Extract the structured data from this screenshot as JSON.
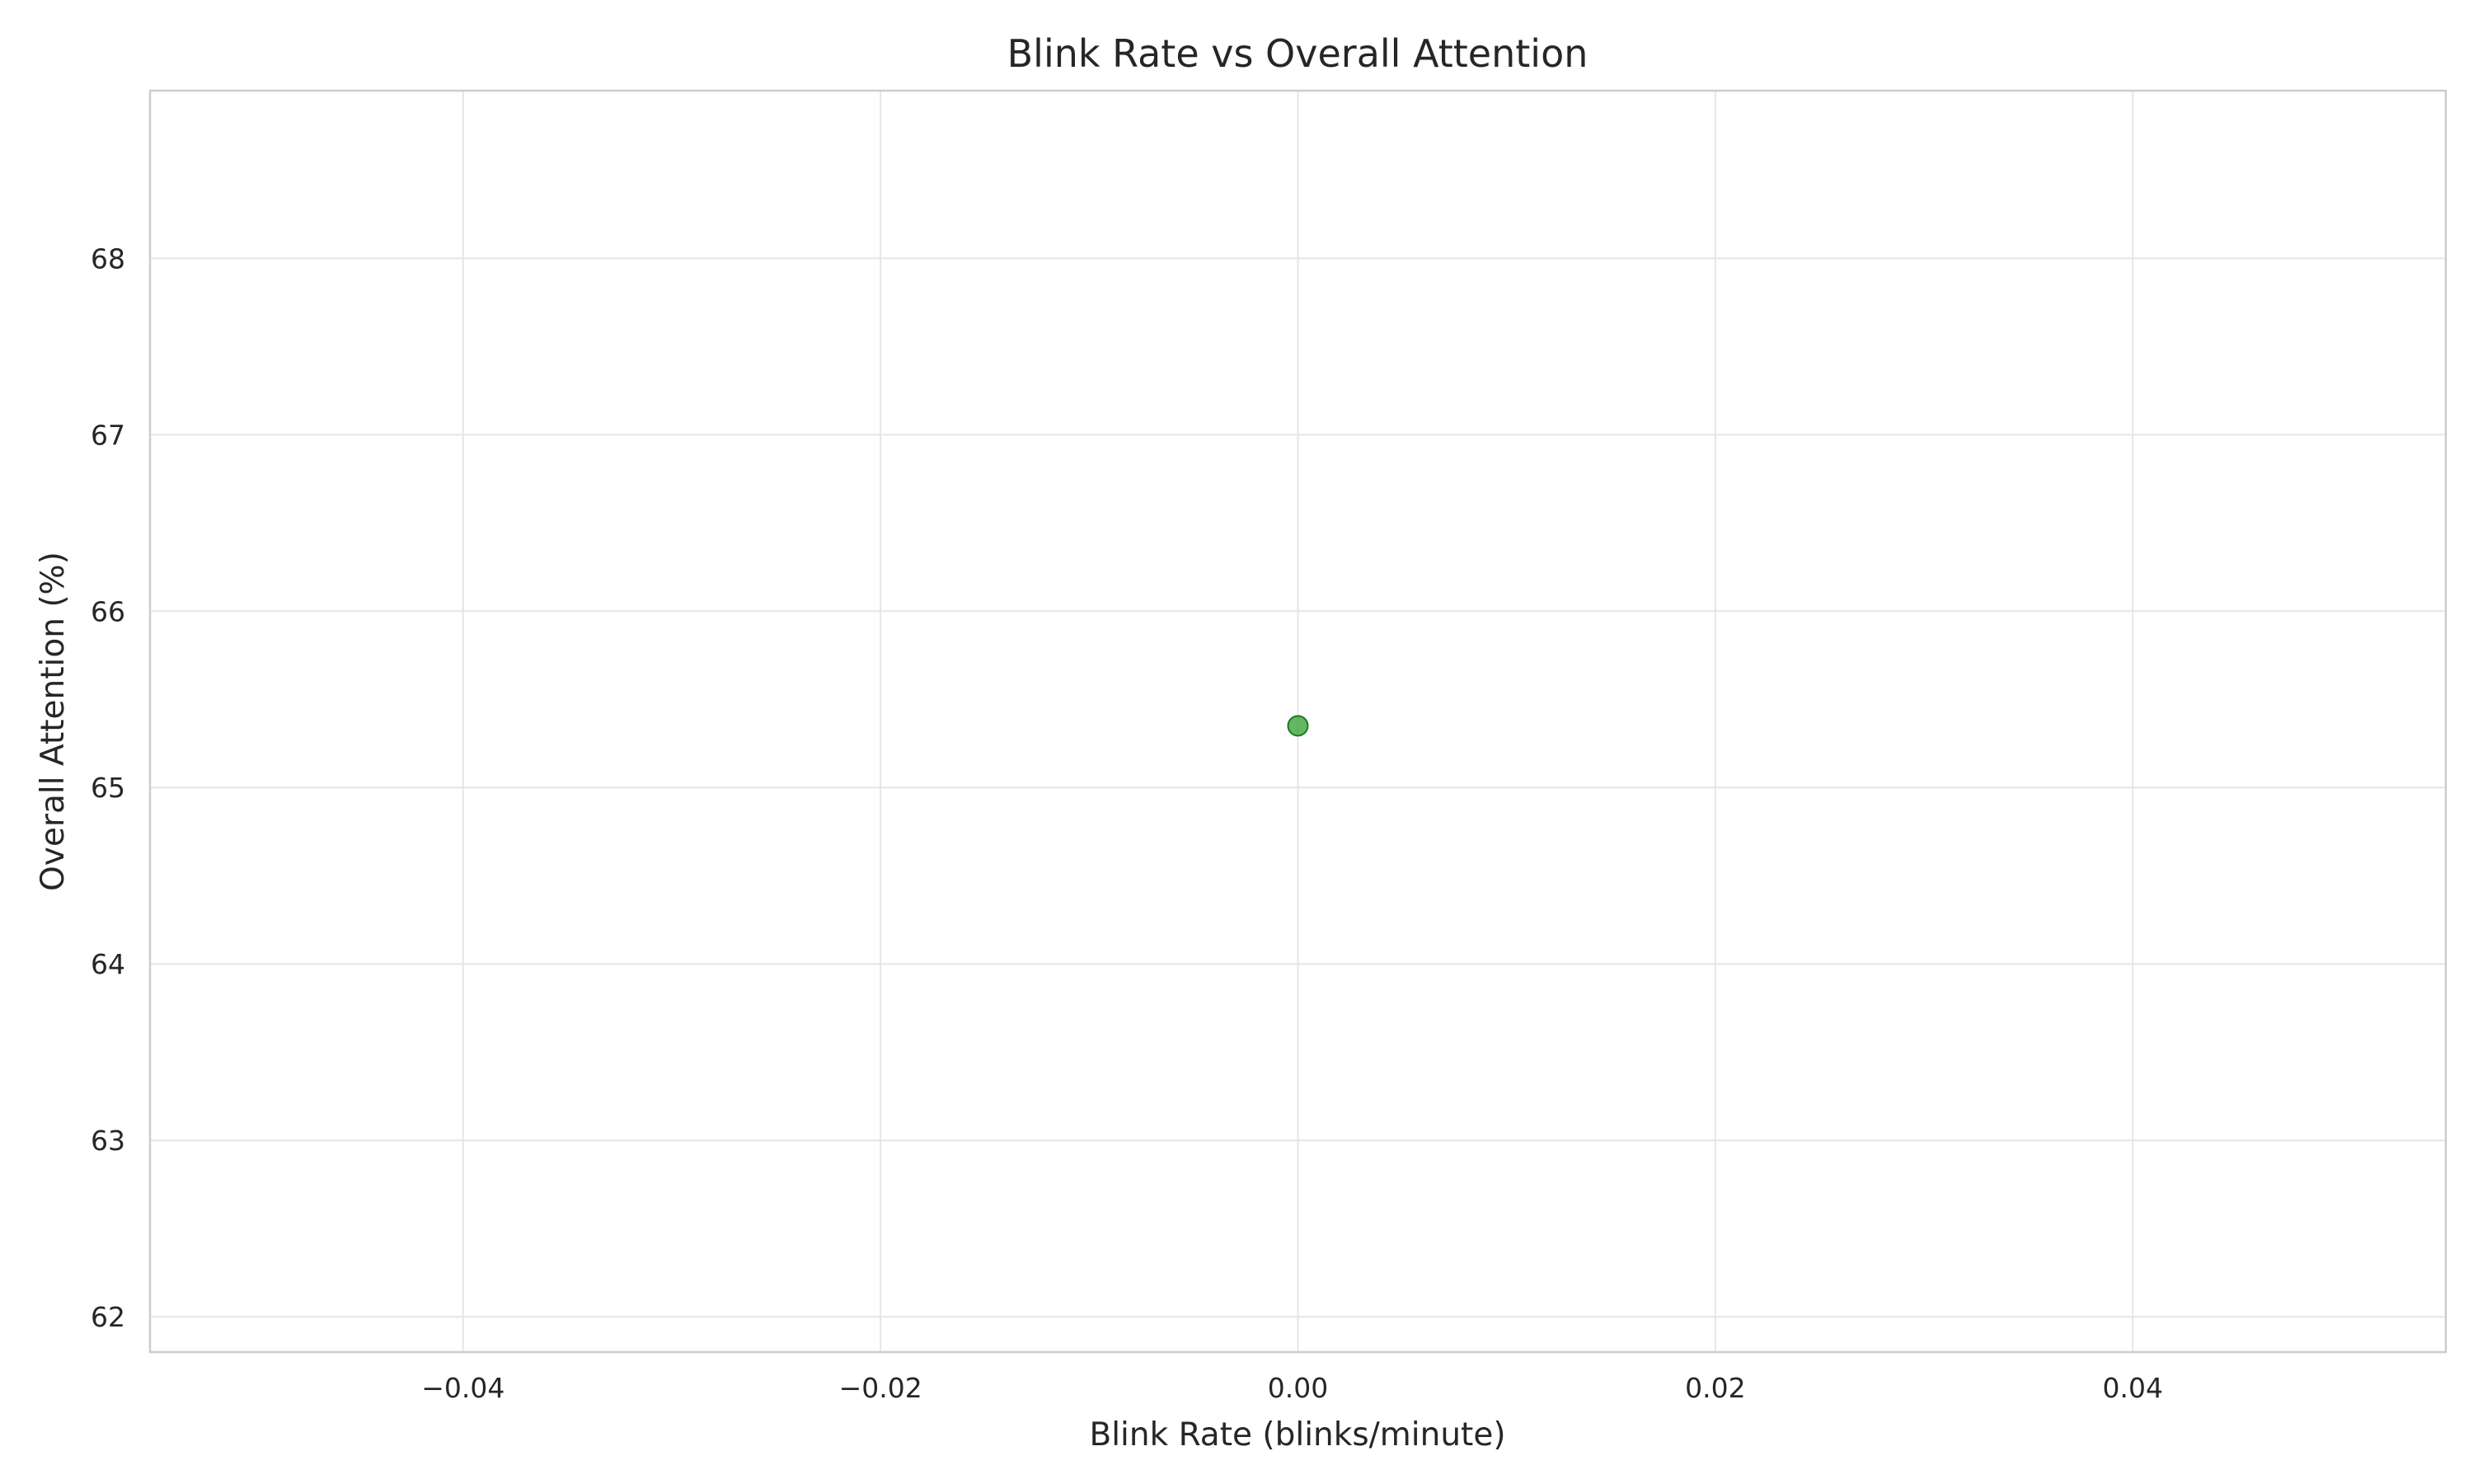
{
  "chart_data": {
    "type": "scatter",
    "title": "Blink Rate vs Overall Attention",
    "xlabel": "Blink Rate (blinks/minute)",
    "ylabel": "Overall Attention (%)",
    "xlim": [
      -0.055,
      0.055
    ],
    "ylim": [
      61.8,
      68.95
    ],
    "xticks": [
      -0.04,
      -0.02,
      0.0,
      0.02,
      0.04
    ],
    "xtick_labels": [
      "−0.04",
      "−0.02",
      "0.00",
      "0.02",
      "0.04"
    ],
    "yticks": [
      62,
      63,
      64,
      65,
      66,
      67,
      68
    ],
    "ytick_labels": [
      "62",
      "63",
      "64",
      "65",
      "66",
      "67",
      "68"
    ],
    "grid": true,
    "series": [
      {
        "color": "#2ca02c",
        "points": [
          {
            "x": 0.0,
            "y": 65.35
          }
        ]
      }
    ]
  },
  "colors": {
    "grid": "#e6e6e6",
    "spine": "#cccccc",
    "marker": "#2ca02c",
    "marker_edge": "#1f7a1f",
    "text": "#262626"
  }
}
